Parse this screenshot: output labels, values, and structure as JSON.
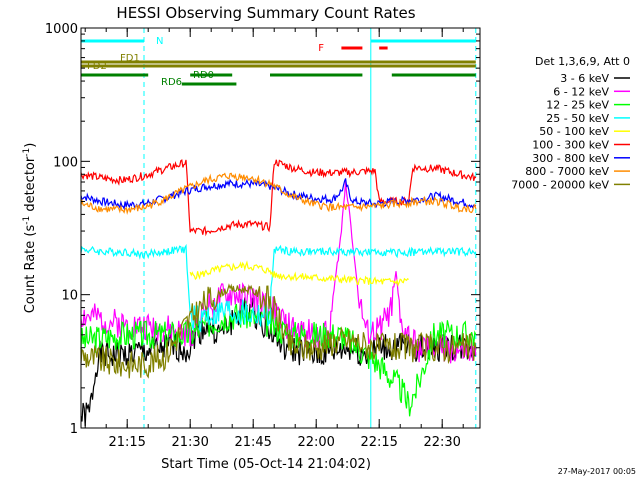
{
  "chart_data": {
    "type": "line",
    "title": "HESSI Observing Summary Count Rates",
    "xlabel": "Start Time (05-Oct-14 21:04:02)",
    "ylabel_main": "Count Rate (s",
    "ylabel_sup1": "-1",
    "ylabel_mid": " detector",
    "ylabel_sup2": "-1",
    "ylabel_end": ")",
    "yscale": "log",
    "xlim_minutes": [
      0,
      95
    ],
    "ylim": [
      1,
      1000
    ],
    "x_ticks": [
      {
        "label": "21:15",
        "minute": 11
      },
      {
        "label": "21:30",
        "minute": 26
      },
      {
        "label": "21:45",
        "minute": 41
      },
      {
        "label": "22:00",
        "minute": 56
      },
      {
        "label": "22:15",
        "minute": 71
      },
      {
        "label": "22:30",
        "minute": 86
      }
    ],
    "y_ticks": [
      {
        "label": "1",
        "value": 1
      },
      {
        "label": "10",
        "value": 10
      },
      {
        "label": "100",
        "value": 100
      },
      {
        "label": "1000",
        "value": 1000
      }
    ],
    "legend_header": "Det 1,3,6,9, Att 0",
    "legend_position": "right",
    "series": [
      {
        "name": "3 - 6 keV",
        "color": "#000000",
        "points": [
          [
            0,
            1.2
          ],
          [
            2,
            1.3
          ],
          [
            4,
            3.5
          ],
          [
            10,
            3.5
          ],
          [
            20,
            4
          ],
          [
            26,
            4
          ],
          [
            27,
            5
          ],
          [
            30,
            6
          ],
          [
            33,
            5
          ],
          [
            37,
            7
          ],
          [
            40,
            8
          ],
          [
            44,
            6
          ],
          [
            48,
            4
          ],
          [
            56,
            3.5
          ],
          [
            64,
            4
          ],
          [
            68,
            3.5
          ],
          [
            71,
            4
          ],
          [
            78,
            4
          ],
          [
            84,
            4
          ],
          [
            90,
            4
          ],
          [
            94,
            4
          ]
        ]
      },
      {
        "name": "6 - 12 keV",
        "color": "#ff00ff",
        "points": [
          [
            0,
            7
          ],
          [
            10,
            6
          ],
          [
            20,
            5.5
          ],
          [
            26,
            5
          ],
          [
            30,
            8
          ],
          [
            35,
            10
          ],
          [
            40,
            9.5
          ],
          [
            45,
            8
          ],
          [
            50,
            5.5
          ],
          [
            56,
            5
          ],
          [
            59,
            5
          ],
          [
            62,
            30
          ],
          [
            63,
            70
          ],
          [
            64,
            40
          ],
          [
            66,
            10
          ],
          [
            68,
            5
          ],
          [
            71,
            5.5
          ],
          [
            74,
            8
          ],
          [
            75,
            15
          ],
          [
            76,
            6
          ],
          [
            80,
            4
          ],
          [
            86,
            4
          ],
          [
            94,
            3.5
          ]
        ]
      },
      {
        "name": "12 - 25 keV",
        "color": "#00ff00",
        "points": [
          [
            0,
            4.5
          ],
          [
            10,
            5
          ],
          [
            20,
            5
          ],
          [
            26,
            5
          ],
          [
            30,
            6
          ],
          [
            35,
            7
          ],
          [
            40,
            7
          ],
          [
            45,
            6
          ],
          [
            50,
            5
          ],
          [
            56,
            5
          ],
          [
            62,
            5
          ],
          [
            71,
            3
          ],
          [
            76,
            2
          ],
          [
            78,
            1.5
          ],
          [
            80,
            2
          ],
          [
            84,
            5
          ],
          [
            94,
            5
          ]
        ]
      },
      {
        "name": "25 - 50 keV",
        "color": "#00ffff",
        "points": [
          [
            0,
            22
          ],
          [
            5,
            21
          ],
          [
            10,
            21
          ],
          [
            15,
            20
          ],
          [
            20,
            21
          ],
          [
            25,
            22
          ],
          [
            26,
            6.5
          ],
          [
            30,
            7
          ],
          [
            35,
            7.5
          ],
          [
            40,
            7
          ],
          [
            45,
            7
          ],
          [
            46,
            22
          ],
          [
            50,
            21
          ],
          [
            55,
            21
          ],
          [
            60,
            21
          ],
          [
            65,
            21
          ],
          [
            70,
            20.5
          ],
          [
            71,
            21
          ],
          [
            75,
            20.5
          ],
          [
            80,
            21
          ],
          [
            85,
            21
          ],
          [
            90,
            21
          ],
          [
            94,
            21
          ]
        ]
      },
      {
        "name": "50 - 100 keV",
        "color": "#ffff00",
        "points": [
          [
            26,
            14
          ],
          [
            28,
            14
          ],
          [
            31,
            15
          ],
          [
            35,
            16
          ],
          [
            39,
            16.5
          ],
          [
            42,
            16
          ],
          [
            45,
            15
          ],
          [
            46,
            14
          ],
          [
            71,
            12.5
          ],
          [
            76,
            12.5
          ],
          [
            78,
            13
          ]
        ]
      },
      {
        "name": "100 - 300 keV",
        "color": "#ff0000",
        "points": [
          [
            0,
            80
          ],
          [
            5,
            75
          ],
          [
            10,
            72
          ],
          [
            15,
            78
          ],
          [
            20,
            88
          ],
          [
            25,
            98
          ],
          [
            26,
            30
          ],
          [
            30,
            30
          ],
          [
            35,
            33
          ],
          [
            40,
            34
          ],
          [
            45,
            32
          ],
          [
            46,
            100
          ],
          [
            50,
            90
          ],
          [
            55,
            83
          ],
          [
            60,
            82
          ],
          [
            65,
            83
          ],
          [
            70,
            85
          ],
          [
            71,
            50
          ],
          [
            76,
            50
          ],
          [
            78,
            50
          ],
          [
            79,
            90
          ],
          [
            85,
            88
          ],
          [
            90,
            80
          ],
          [
            94,
            75
          ]
        ]
      },
      {
        "name": "300 - 800 keV",
        "color": "#0000ff",
        "points": [
          [
            0,
            55
          ],
          [
            5,
            50
          ],
          [
            10,
            47
          ],
          [
            15,
            48
          ],
          [
            20,
            53
          ],
          [
            25,
            60
          ],
          [
            30,
            65
          ],
          [
            35,
            68
          ],
          [
            40,
            68
          ],
          [
            45,
            65
          ],
          [
            50,
            57
          ],
          [
            55,
            53
          ],
          [
            60,
            52
          ],
          [
            62,
            60
          ],
          [
            63,
            70
          ],
          [
            64,
            55
          ],
          [
            65,
            50
          ],
          [
            70,
            48
          ],
          [
            75,
            50
          ],
          [
            80,
            52
          ],
          [
            85,
            55
          ],
          [
            90,
            50
          ],
          [
            94,
            47
          ]
        ]
      },
      {
        "name": "800 - 7000 keV",
        "color": "#ff8c00",
        "points": [
          [
            0,
            48
          ],
          [
            5,
            44
          ],
          [
            10,
            43
          ],
          [
            15,
            45
          ],
          [
            20,
            52
          ],
          [
            25,
            62
          ],
          [
            30,
            72
          ],
          [
            35,
            78
          ],
          [
            40,
            76
          ],
          [
            45,
            68
          ],
          [
            50,
            55
          ],
          [
            55,
            48
          ],
          [
            60,
            45
          ],
          [
            65,
            45
          ],
          [
            70,
            46
          ],
          [
            75,
            48
          ],
          [
            80,
            50
          ],
          [
            85,
            50
          ],
          [
            90,
            45
          ],
          [
            94,
            44
          ]
        ]
      },
      {
        "name": "7000 - 20000 keV",
        "color": "#808000",
        "points": [
          [
            0,
            3.5
          ],
          [
            5,
            3.2
          ],
          [
            10,
            3
          ],
          [
            15,
            3
          ],
          [
            20,
            3.5
          ],
          [
            25,
            6
          ],
          [
            30,
            9
          ],
          [
            35,
            11
          ],
          [
            40,
            11
          ],
          [
            45,
            9
          ],
          [
            50,
            4
          ],
          [
            56,
            4
          ],
          [
            60,
            4.5
          ],
          [
            65,
            4.5
          ],
          [
            70,
            4
          ],
          [
            75,
            4
          ],
          [
            80,
            4
          ],
          [
            85,
            4
          ],
          [
            90,
            4
          ],
          [
            94,
            4
          ]
        ]
      }
    ],
    "annotations": [
      {
        "label": "N",
        "color": "#00ffff",
        "intervals": [
          [
            0,
            15
          ],
          [
            69,
            94
          ]
        ]
      },
      {
        "label": "F",
        "color": "#ff0000",
        "intervals": [
          [
            62,
            67
          ],
          [
            71,
            73
          ]
        ]
      },
      {
        "label": "FD1",
        "color": "#808000",
        "intervals": [
          [
            0,
            94
          ]
        ]
      },
      {
        "label": "FD2",
        "color": "#808000",
        "intervals": [
          [
            0,
            94
          ]
        ]
      },
      {
        "label": "RD0",
        "color": "#008000",
        "intervals": [
          [
            0,
            16
          ],
          [
            26,
            36
          ],
          [
            45,
            67
          ],
          [
            74,
            94
          ]
        ]
      },
      {
        "label": "RD6",
        "color": "#008000",
        "intervals": [
          [
            24,
            37
          ]
        ]
      }
    ],
    "event_lines": [
      {
        "minute": 0,
        "style": "solid",
        "color": "#00ffff"
      },
      {
        "minute": 15,
        "style": "dashed",
        "color": "#00ffff"
      },
      {
        "minute": 69,
        "style": "solid",
        "color": "#00ffff"
      },
      {
        "minute": 94,
        "style": "dashed",
        "color": "#00ffff"
      }
    ],
    "footer_date": "27-May-2017 00:05"
  }
}
